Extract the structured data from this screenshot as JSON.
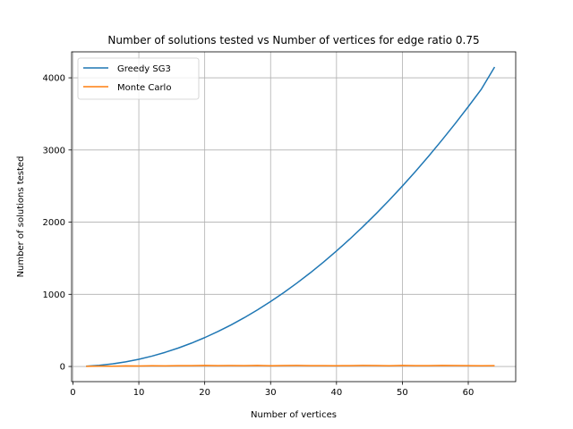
{
  "chart_data": {
    "type": "line",
    "title": "Number of solutions tested vs Number of vertices for edge ratio 0.75",
    "xlabel": "Number of vertices",
    "ylabel": "Number of solutions tested",
    "xlim": [
      -0.2,
      67.2
    ],
    "ylim": [
      -210,
      4360
    ],
    "xticks": [
      0,
      10,
      20,
      30,
      40,
      50,
      60
    ],
    "yticks": [
      0,
      1000,
      2000,
      3000,
      4000
    ],
    "grid": true,
    "legend": "top-left",
    "series": [
      {
        "name": "Greedy SG3",
        "color": "#1f77b4",
        "x": [
          2,
          4,
          6,
          8,
          10,
          12,
          14,
          16,
          18,
          20,
          22,
          24,
          26,
          28,
          30,
          32,
          34,
          36,
          38,
          40,
          42,
          44,
          46,
          48,
          50,
          52,
          54,
          56,
          58,
          60,
          62,
          64
        ],
        "y": [
          4,
          16,
          36,
          64,
          100,
          144,
          196,
          256,
          324,
          400,
          484,
          576,
          676,
          784,
          900,
          1024,
          1156,
          1296,
          1444,
          1600,
          1764,
          1936,
          2116,
          2304,
          2500,
          2704,
          2916,
          3136,
          3364,
          3600,
          3844,
          4150
        ]
      },
      {
        "name": "Monte Carlo",
        "color": "#ff7f0e",
        "x": [
          2,
          4,
          6,
          8,
          10,
          12,
          14,
          16,
          18,
          20,
          22,
          24,
          26,
          28,
          30,
          32,
          34,
          36,
          38,
          40,
          42,
          44,
          46,
          48,
          50,
          52,
          54,
          56,
          58,
          60,
          62,
          64
        ],
        "y": [
          2,
          5,
          4,
          8,
          7,
          10,
          9,
          12,
          11,
          14,
          12,
          13,
          11,
          15,
          10,
          13,
          14,
          12,
          11,
          10,
          12,
          14,
          13,
          10,
          15,
          12,
          11,
          14,
          13,
          12,
          10,
          11
        ]
      }
    ]
  }
}
